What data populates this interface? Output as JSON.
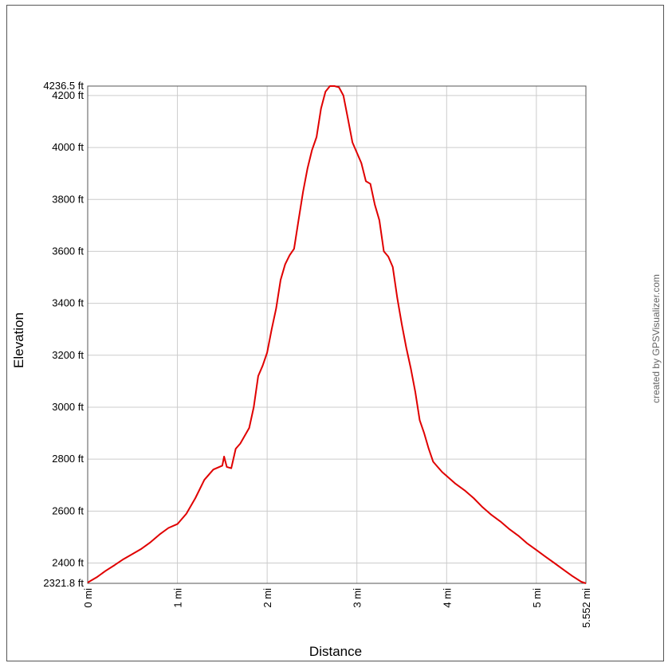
{
  "chart_data": {
    "type": "line",
    "title": "",
    "xlabel": "Distance",
    "ylabel": "Elevation",
    "xlim": [
      0,
      5.552
    ],
    "ylim": [
      2321.8,
      4236.5
    ],
    "x_unit": "mi",
    "y_unit": "ft",
    "grid": true,
    "credit": "created by GPSVisualizer.com",
    "x_ticks": [
      {
        "value": 0,
        "label": "0 mi"
      },
      {
        "value": 1,
        "label": "1 mi"
      },
      {
        "value": 2,
        "label": "2 mi"
      },
      {
        "value": 3,
        "label": "3 mi"
      },
      {
        "value": 4,
        "label": "4 mi"
      },
      {
        "value": 5,
        "label": "5 mi"
      },
      {
        "value": 5.552,
        "label": "5.552 mi"
      }
    ],
    "y_ticks": [
      {
        "value": 2321.8,
        "label": "2321.8 ft"
      },
      {
        "value": 2400,
        "label": "2400 ft"
      },
      {
        "value": 2600,
        "label": "2600 ft"
      },
      {
        "value": 2800,
        "label": "2800 ft"
      },
      {
        "value": 3000,
        "label": "3000 ft"
      },
      {
        "value": 3200,
        "label": "3200 ft"
      },
      {
        "value": 3400,
        "label": "3400 ft"
      },
      {
        "value": 3600,
        "label": "3600 ft"
      },
      {
        "value": 3800,
        "label": "3800 ft"
      },
      {
        "value": 4000,
        "label": "4000 ft"
      },
      {
        "value": 4200,
        "label": "4200 ft"
      },
      {
        "value": 4236.5,
        "label": "4236.5 ft"
      }
    ],
    "series": [
      {
        "color": "#e00000",
        "x": [
          0,
          0.1,
          0.2,
          0.3,
          0.4,
          0.5,
          0.6,
          0.7,
          0.8,
          0.9,
          1.0,
          1.1,
          1.2,
          1.3,
          1.4,
          1.5,
          1.52,
          1.55,
          1.6,
          1.65,
          1.7,
          1.8,
          1.85,
          1.9,
          1.95,
          2.0,
          2.05,
          2.1,
          2.15,
          2.2,
          2.25,
          2.3,
          2.35,
          2.4,
          2.45,
          2.5,
          2.55,
          2.6,
          2.65,
          2.7,
          2.75,
          2.8,
          2.85,
          2.9,
          2.95,
          3.0,
          3.05,
          3.1,
          3.15,
          3.2,
          3.25,
          3.3,
          3.35,
          3.4,
          3.45,
          3.5,
          3.55,
          3.6,
          3.65,
          3.7,
          3.75,
          3.8,
          3.85,
          3.9,
          3.95,
          4.0,
          4.1,
          4.2,
          4.3,
          4.4,
          4.5,
          4.6,
          4.7,
          4.8,
          4.9,
          5.0,
          5.1,
          5.2,
          5.3,
          5.4,
          5.5,
          5.552
        ],
        "y": [
          2325,
          2345,
          2370,
          2392,
          2415,
          2435,
          2455,
          2480,
          2510,
          2535,
          2550,
          2590,
          2650,
          2720,
          2760,
          2775,
          2810,
          2770,
          2765,
          2840,
          2860,
          2920,
          3000,
          3120,
          3160,
          3210,
          3300,
          3380,
          3490,
          3550,
          3585,
          3610,
          3720,
          3830,
          3920,
          3990,
          4040,
          4150,
          4215,
          4236.5,
          4236.5,
          4232,
          4200,
          4110,
          4020,
          3980,
          3940,
          3870,
          3860,
          3780,
          3720,
          3600,
          3580,
          3540,
          3420,
          3320,
          3230,
          3150,
          3060,
          2950,
          2900,
          2840,
          2790,
          2770,
          2750,
          2735,
          2705,
          2680,
          2650,
          2615,
          2585,
          2560,
          2530,
          2505,
          2475,
          2450,
          2425,
          2400,
          2375,
          2350,
          2328,
          2321.8
        ]
      }
    ]
  }
}
